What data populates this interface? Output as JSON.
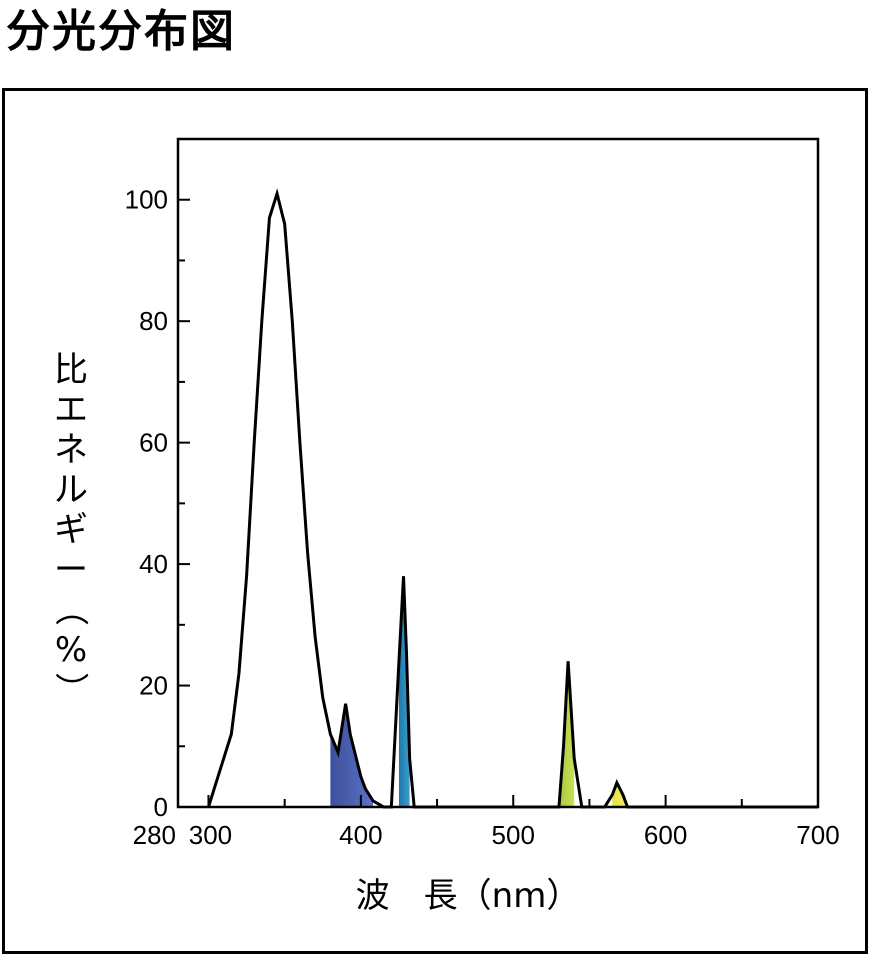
{
  "title": "分光分布図",
  "chart_data": {
    "type": "line",
    "title": "",
    "xlabel": "波　長（nm）",
    "ylabel_chars": [
      "比",
      "エ",
      "ネ",
      "ル",
      "ギ",
      "ー",
      "（",
      "%",
      "）"
    ],
    "xlim": [
      280,
      700
    ],
    "ylim": [
      0,
      110
    ],
    "x_ticks": [
      280,
      300,
      400,
      500,
      600,
      700
    ],
    "y_ticks": [
      0,
      20,
      40,
      60,
      80,
      100
    ],
    "grid": false,
    "series": [
      {
        "x": [
          300,
          305,
          310,
          315,
          320,
          325,
          330,
          335,
          340,
          345,
          350,
          355,
          360,
          365,
          370,
          375,
          380,
          385,
          390,
          393,
          396,
          400,
          403,
          408,
          415,
          420,
          425,
          428,
          430,
          432,
          435,
          440,
          450,
          470,
          500,
          520,
          530,
          533,
          536,
          540,
          545,
          550,
          560,
          565,
          568,
          572,
          575,
          600,
          650,
          700
        ],
        "y": [
          0,
          4,
          8,
          12,
          22,
          38,
          60,
          80,
          97,
          101,
          96,
          80,
          60,
          42,
          28,
          18,
          12,
          9,
          17,
          12,
          9,
          5,
          3,
          1,
          0,
          0,
          24,
          38,
          25,
          8,
          0,
          0,
          0,
          0,
          0,
          0,
          0,
          10,
          24,
          8,
          0,
          0,
          0,
          2,
          4,
          2,
          0,
          0,
          0,
          0
        ]
      }
    ],
    "filled_bands": [
      {
        "from": 380,
        "to": 408,
        "color": "#3d4f9c",
        "color2": "#5b73c7"
      },
      {
        "from": 425,
        "to": 432,
        "color": "#1f78a8",
        "color2": "#3b9ed0"
      },
      {
        "from": 530,
        "to": 540,
        "color": "#a8c83a",
        "color2": "#c9e05a"
      },
      {
        "from": 565,
        "to": 575,
        "color": "#e6e23e",
        "color2": "#f2ee6a"
      }
    ]
  }
}
